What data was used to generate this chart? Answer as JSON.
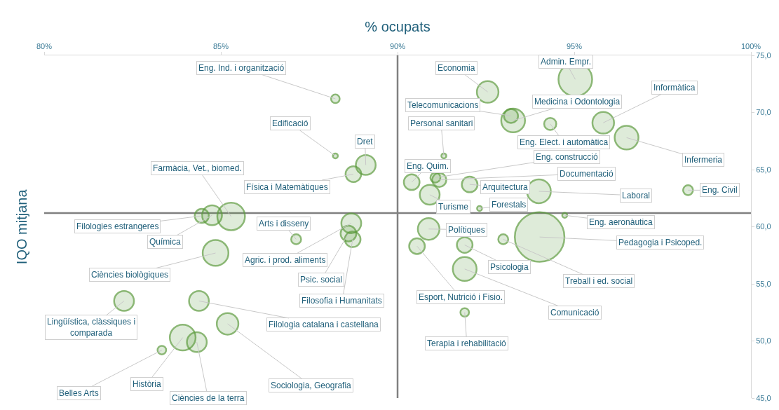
{
  "chart_data": {
    "type": "bubble",
    "xlabel": "% ocupats",
    "ylabel": "IQO mitjana",
    "x": [
      88.24,
      88.24,
      89.1,
      88.75,
      85.29,
      84.46,
      84.75,
      87.13,
      88.69,
      88.61,
      88.73,
      84.85,
      82.26,
      84.38,
      85.19,
      83.33,
      83.92,
      84.32,
      92.55,
      95.03,
      93.21,
      93.27,
      95.82,
      94.32,
      96.48,
      91.31,
      90.4,
      91.07,
      91.18,
      92.04,
      94.0,
      98.22,
      90.91,
      92.32,
      94.73,
      90.88,
      94.02,
      90.55,
      91.9,
      92.99,
      91.9,
      91.9
    ],
    "values": [
      71.2,
      66.2,
      65.4,
      64.6,
      60.9,
      60.95,
      61.0,
      58.9,
      60.3,
      59.4,
      58.9,
      57.7,
      53.5,
      53.5,
      51.5,
      49.2,
      50.3,
      49.9,
      71.8,
      72.9,
      69.7,
      69.3,
      69.1,
      69.0,
      67.8,
      66.2,
      63.9,
      64.3,
      64.1,
      63.7,
      63.1,
      63.2,
      62.8,
      61.6,
      61.0,
      59.8,
      59.1,
      58.3,
      58.4,
      58.9,
      56.3,
      52.5
    ],
    "sizes": [
      0.03,
      0.01,
      0.16,
      0.1,
      0.31,
      0.08,
      0.16,
      0.04,
      0.16,
      0.1,
      0.1,
      0.27,
      0.16,
      0.16,
      0.19,
      0.03,
      0.27,
      0.16,
      0.19,
      0.46,
      0.08,
      0.23,
      0.19,
      0.06,
      0.23,
      0.01,
      0.1,
      0.04,
      0.08,
      0.1,
      0.23,
      0.04,
      0.16,
      0.01,
      0.01,
      0.19,
      1,
      0.1,
      0.1,
      0.04,
      0.23,
      0.03
    ],
    "color": "#5b9a3c",
    "xlim": [
      80,
      100
    ],
    "xticks": [
      {
        "value": 80,
        "label": "80%"
      },
      {
        "value": 85,
        "label": "85%"
      },
      {
        "value": 90,
        "label": "90%"
      },
      {
        "value": 95,
        "label": "95%"
      },
      {
        "value": 100,
        "label": "100%"
      }
    ],
    "ylim": [
      45,
      75
    ],
    "yticks": [
      {
        "value": 45,
        "label": "45,0"
      },
      {
        "value": 50,
        "label": "50,0"
      },
      {
        "value": 55,
        "label": "55,0"
      },
      {
        "value": 60,
        "label": "60,0"
      },
      {
        "value": 65,
        "label": "65,0"
      },
      {
        "value": 70,
        "label": "70,0"
      },
      {
        "value": 75,
        "label": "75,0"
      }
    ],
    "ref_lines": [
      {
        "axis": "x",
        "value": 90,
        "color": "#808080"
      },
      {
        "axis": "y",
        "value": 61.2,
        "color": "#808080"
      }
    ],
    "annotations": [
      {
        "text": "Eng. Ind. i organització",
        "x": 88.24,
        "y": 71.2
      },
      {
        "text": "Edificació",
        "x": 88.24,
        "y": 66.2
      },
      {
        "text": "Dret",
        "x": 89.1,
        "y": 65.4
      },
      {
        "text": "Física i Matemàtiques",
        "x": 88.75,
        "y": 64.6
      },
      {
        "text": "Farmàcia, Vet., biomed.",
        "x": 85.29,
        "y": 60.9
      },
      {
        "text": "Filologies estrangeres",
        "x": 84.46,
        "y": 60.95
      },
      {
        "text": "Química",
        "x": 84.75,
        "y": 61.0
      },
      {
        "text": "Arts i disseny",
        "x": 87.13,
        "y": 58.9
      },
      {
        "text": "Agric. i prod. aliments",
        "x": 88.69,
        "y": 60.3
      },
      {
        "text": "Psic. social",
        "x": 88.61,
        "y": 59.4
      },
      {
        "text": "Filosofia i Humanitats",
        "x": 88.73,
        "y": 58.9
      },
      {
        "text": "Ciències biològiques",
        "x": 84.85,
        "y": 57.7
      },
      {
        "text": "Lingüística, clàssiques i comparada",
        "x": 82.26,
        "y": 53.5
      },
      {
        "text": "Filologia catalana i castellana",
        "x": 84.38,
        "y": 53.5
      },
      {
        "text": "Sociologia, Geografia",
        "x": 85.19,
        "y": 51.5
      },
      {
        "text": "Belles Arts",
        "x": 83.33,
        "y": 49.2
      },
      {
        "text": "Història",
        "x": 83.92,
        "y": 50.3
      },
      {
        "text": "Ciències de la terra",
        "x": 84.32,
        "y": 49.9
      },
      {
        "text": "Economia",
        "x": 92.55,
        "y": 71.8
      },
      {
        "text": "Admin. Empr.",
        "x": 95.03,
        "y": 72.9
      },
      {
        "text": "Telecomunicacions",
        "x": 93.21,
        "y": 69.7
      },
      {
        "text": "Medicina i Odontologia",
        "x": 93.27,
        "y": 69.3
      },
      {
        "text": "Informàtica",
        "x": 95.82,
        "y": 69.1
      },
      {
        "text": "Eng. Elect. i automàtica",
        "x": 94.32,
        "y": 69.0
      },
      {
        "text": "Infermeria",
        "x": 96.48,
        "y": 67.8
      },
      {
        "text": "Personal sanitari",
        "x": 91.31,
        "y": 66.2
      },
      {
        "text": "Eng. Quim.",
        "x": 90.4,
        "y": 63.9
      },
      {
        "text": "Eng. construcció",
        "x": 91.07,
        "y": 64.3
      },
      {
        "text": "Documentació",
        "x": 91.18,
        "y": 64.1
      },
      {
        "text": "Arquitectura",
        "x": 92.04,
        "y": 63.7
      },
      {
        "text": "Laboral",
        "x": 94.0,
        "y": 63.1
      },
      {
        "text": "Eng. Civil",
        "x": 98.22,
        "y": 63.2
      },
      {
        "text": "Turisme",
        "x": 90.91,
        "y": 62.8
      },
      {
        "text": "Forestals",
        "x": 92.32,
        "y": 61.6
      },
      {
        "text": "Eng. aeronàutica",
        "x": 94.73,
        "y": 61.0
      },
      {
        "text": "Polítiques",
        "x": 90.88,
        "y": 59.8
      },
      {
        "text": "Pedagogia i Psicoped.",
        "x": 94.02,
        "y": 59.1
      },
      {
        "text": "Esport, Nutrició i Fisio.",
        "x": 90.55,
        "y": 58.3
      },
      {
        "text": "Psicologia",
        "x": 91.9,
        "y": 58.4
      },
      {
        "text": "Treball i ed. social",
        "x": 92.99,
        "y": 58.9
      },
      {
        "text": "Comunicació",
        "x": 91.9,
        "y": 56.3
      },
      {
        "text": "Terapia i rehabilitació",
        "x": 91.9,
        "y": 52.5
      }
    ]
  }
}
